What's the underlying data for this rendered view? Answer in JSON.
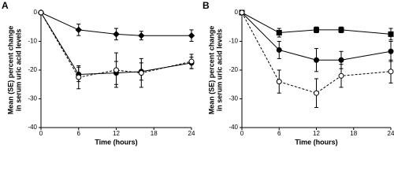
{
  "chart_data": [
    {
      "type": "line",
      "panel_label": "A",
      "xlabel": "Time (hours)",
      "ylabel": [
        "Mean (SE) percent change",
        "in serum uric acid levels"
      ],
      "x": [
        0,
        6,
        12,
        16,
        24
      ],
      "xlim": [
        0,
        24
      ],
      "xticks": [
        0,
        6,
        12,
        18,
        24
      ],
      "ylim": [
        -40,
        0
      ],
      "yticks": [
        0,
        -10,
        -20,
        -30,
        -40
      ],
      "series": [
        {
          "marker": "diamond",
          "dash": false,
          "color": "#000000",
          "values": [
            0,
            -6,
            -7.5,
            -8,
            -8
          ],
          "errors": [
            0,
            2,
            2,
            1.5,
            2
          ]
        },
        {
          "marker": "circle",
          "dash": false,
          "color": "#000000",
          "values": [
            0,
            -21.5,
            -21,
            -20.5,
            -17.5
          ],
          "errors": [
            0,
            2.5,
            4,
            3,
            2
          ]
        },
        {
          "marker": "open-circle",
          "dash": true,
          "color": "#000000",
          "values": [
            0,
            -22.5,
            -20,
            -21,
            -17
          ],
          "errors": [
            0,
            4,
            6,
            5,
            2.5
          ]
        }
      ]
    },
    {
      "type": "line",
      "panel_label": "B",
      "xlabel": "Time (hours)",
      "ylabel": [
        "Mean (SE) percent change",
        "in serum uric acid levels"
      ],
      "x": [
        0,
        6,
        12,
        16,
        24
      ],
      "xlim": [
        0,
        24
      ],
      "xticks": [
        0,
        6,
        12,
        18,
        24
      ],
      "ylim": [
        -40,
        0
      ],
      "yticks": [
        0,
        -10,
        -20,
        -30,
        -40
      ],
      "series": [
        {
          "marker": "square",
          "dash": false,
          "color": "#000000",
          "values": [
            0,
            -7,
            -6,
            -6,
            -7.5
          ],
          "errors": [
            0,
            1.5,
            1,
            1,
            2
          ]
        },
        {
          "marker": "circle",
          "dash": false,
          "color": "#000000",
          "values": [
            0,
            -13,
            -16.5,
            -16.5,
            -13.5
          ],
          "errors": [
            0,
            3,
            4,
            3,
            3.5
          ]
        },
        {
          "marker": "open-circle",
          "dash": true,
          "color": "#000000",
          "values": [
            0,
            -24,
            -28,
            -22,
            -20.5
          ],
          "errors": [
            0,
            4,
            5,
            4,
            4
          ]
        }
      ]
    }
  ]
}
